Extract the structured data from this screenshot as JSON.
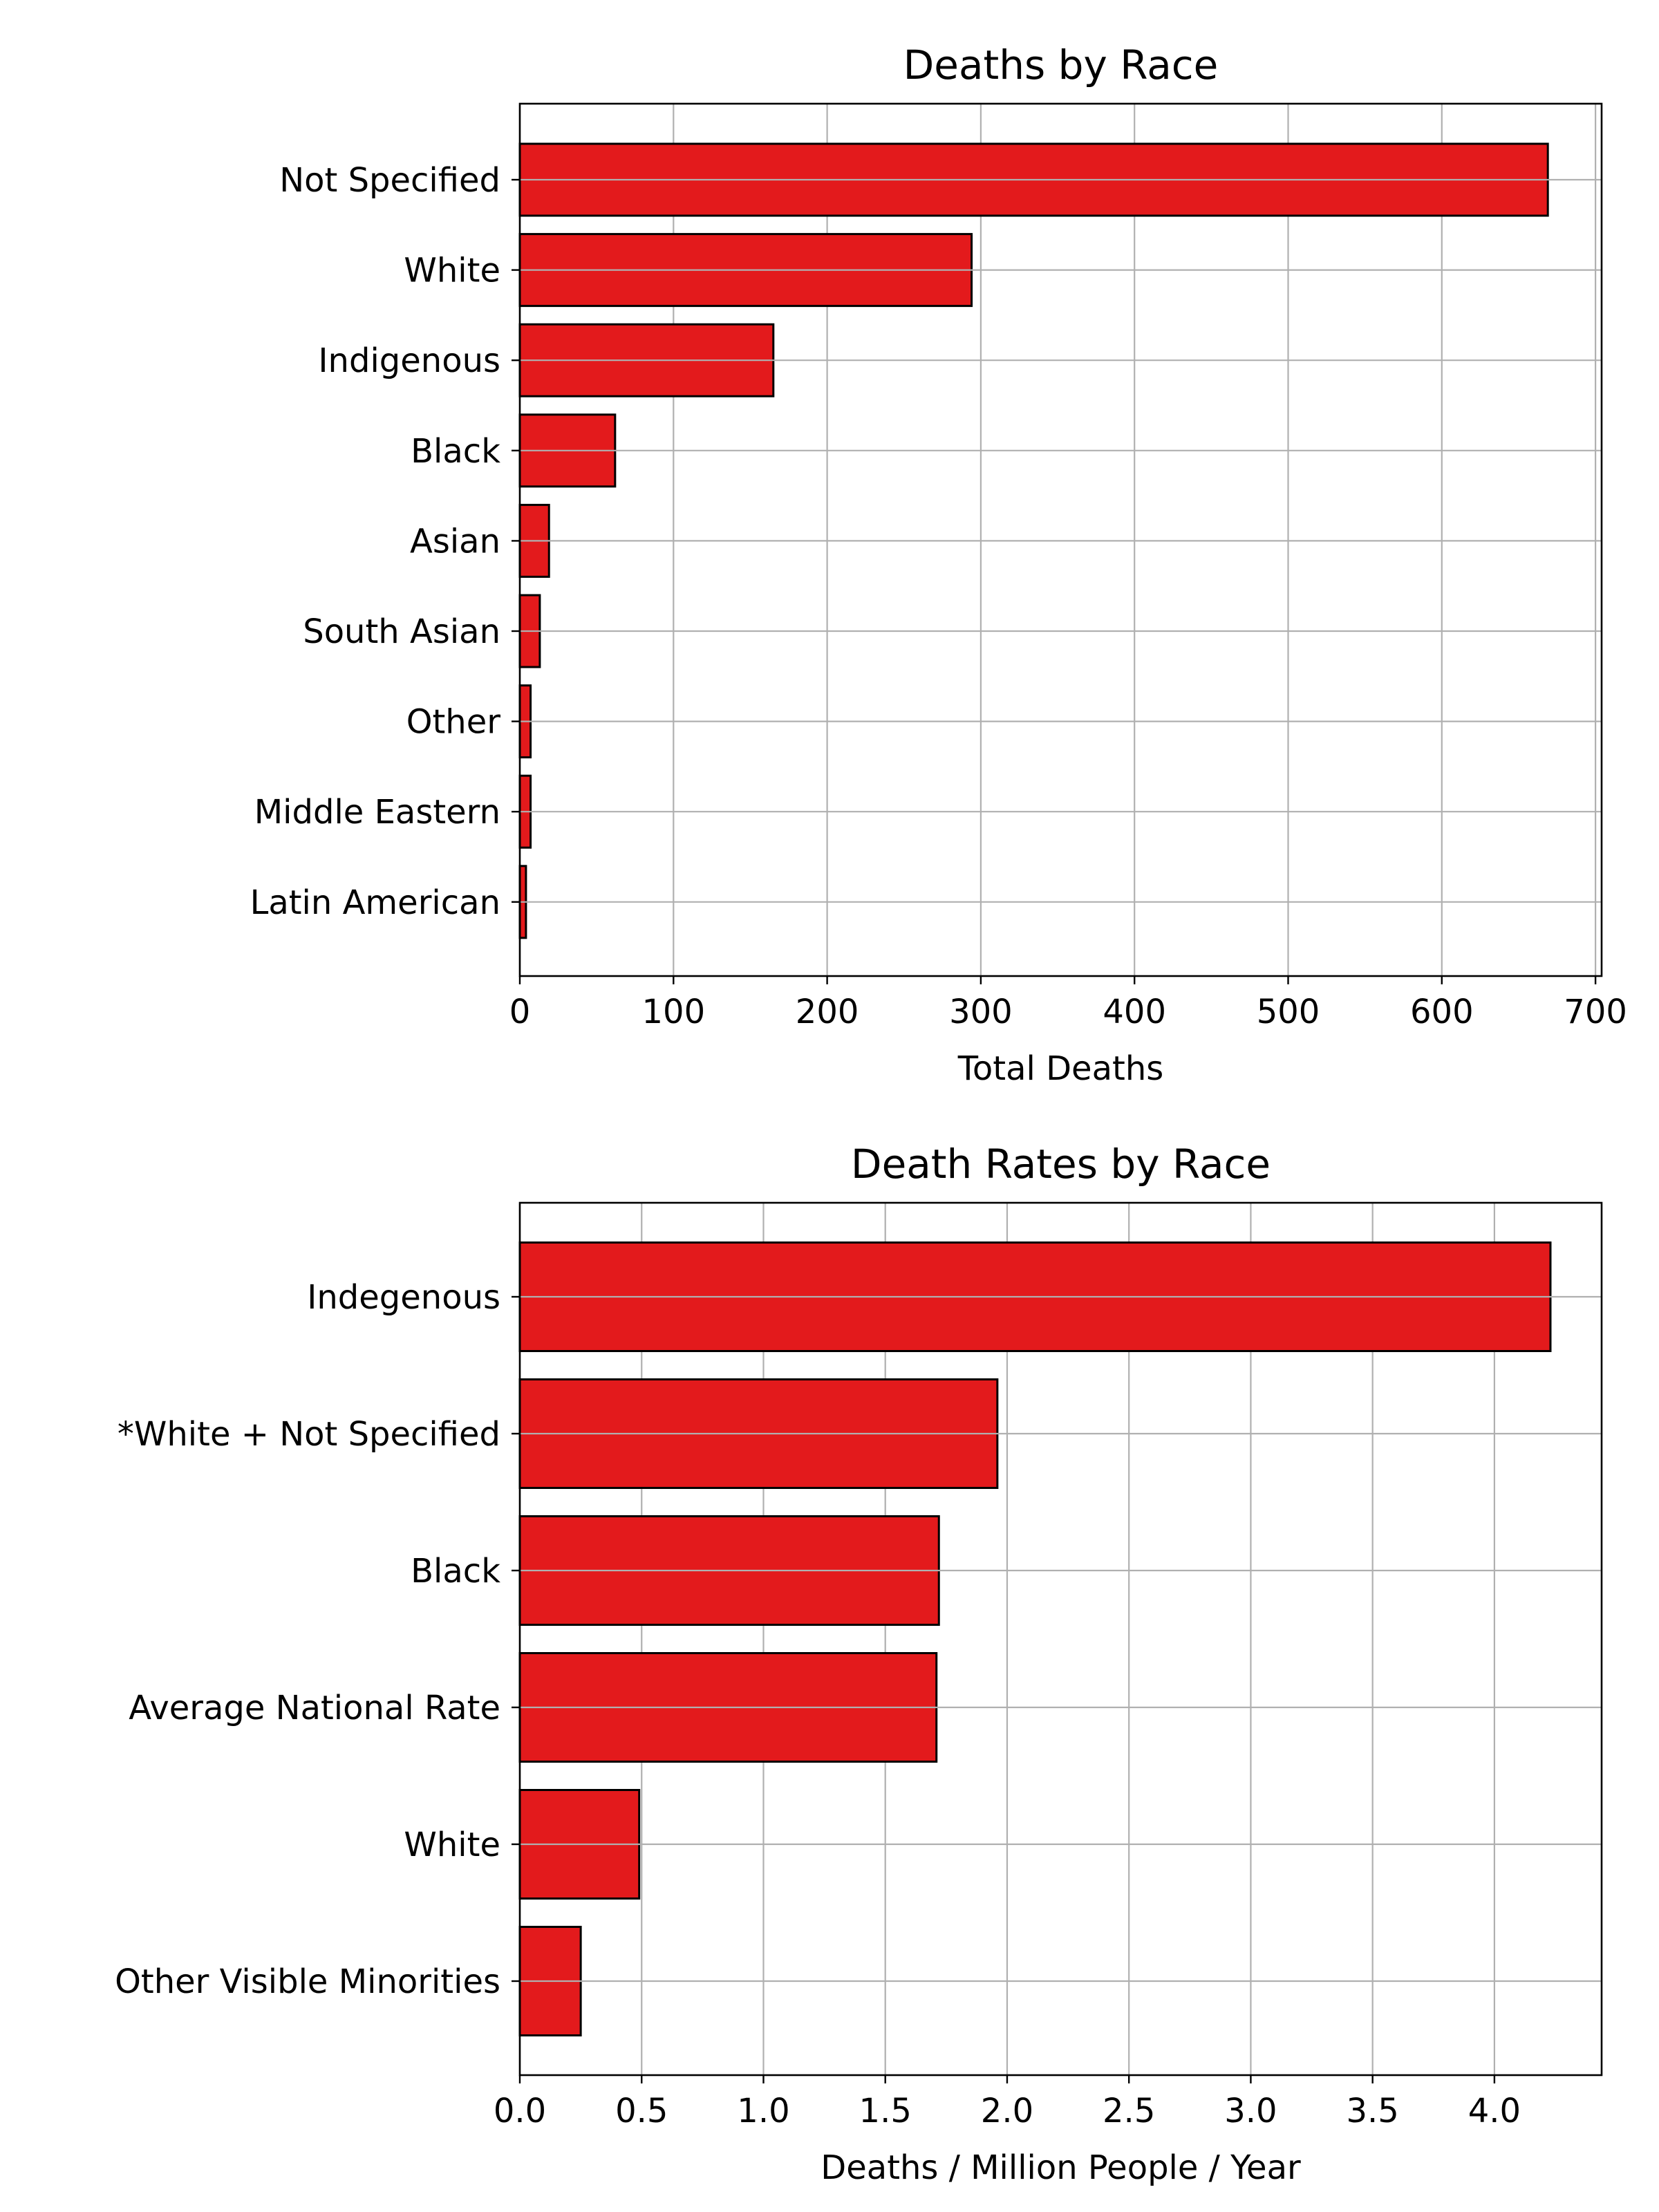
{
  "chart_data": [
    {
      "type": "bar",
      "orientation": "horizontal",
      "title": "Deaths by Race",
      "xlabel": "Total Deaths",
      "ylabel": "",
      "categories": [
        "Not Specified",
        "White",
        "Indigenous",
        "Black",
        "Asian",
        "South Asian",
        "Other",
        "Middle Eastern",
        "Latin American"
      ],
      "values": [
        669,
        294,
        165,
        62,
        19,
        13,
        7,
        7,
        4
      ],
      "xlim": [
        0,
        704
      ],
      "xticks": [
        0,
        100,
        200,
        300,
        400,
        500,
        600,
        700
      ],
      "xtick_labels": [
        "0",
        "100",
        "200",
        "300",
        "400",
        "500",
        "600",
        "700"
      ],
      "grid": true,
      "bar_color": "#e31a1c",
      "edge_color": "#000000"
    },
    {
      "type": "bar",
      "orientation": "horizontal",
      "title": "Death Rates by Race",
      "xlabel": "Deaths / Million People / Year",
      "ylabel": "",
      "categories": [
        "Indegenous",
        "*White + Not Specified",
        "Black",
        "Average National Rate",
        "White",
        "Other Visible Minorities"
      ],
      "values": [
        4.23,
        1.96,
        1.72,
        1.71,
        0.49,
        0.25
      ],
      "xlim": [
        0,
        4.44
      ],
      "xticks": [
        0.0,
        0.5,
        1.0,
        1.5,
        2.0,
        2.5,
        3.0,
        3.5,
        4.0
      ],
      "xtick_labels": [
        "0.0",
        "0.5",
        "1.0",
        "1.5",
        "2.0",
        "2.5",
        "3.0",
        "3.5",
        "4.0"
      ],
      "grid": true,
      "bar_color": "#e31a1c",
      "edge_color": "#000000"
    }
  ]
}
